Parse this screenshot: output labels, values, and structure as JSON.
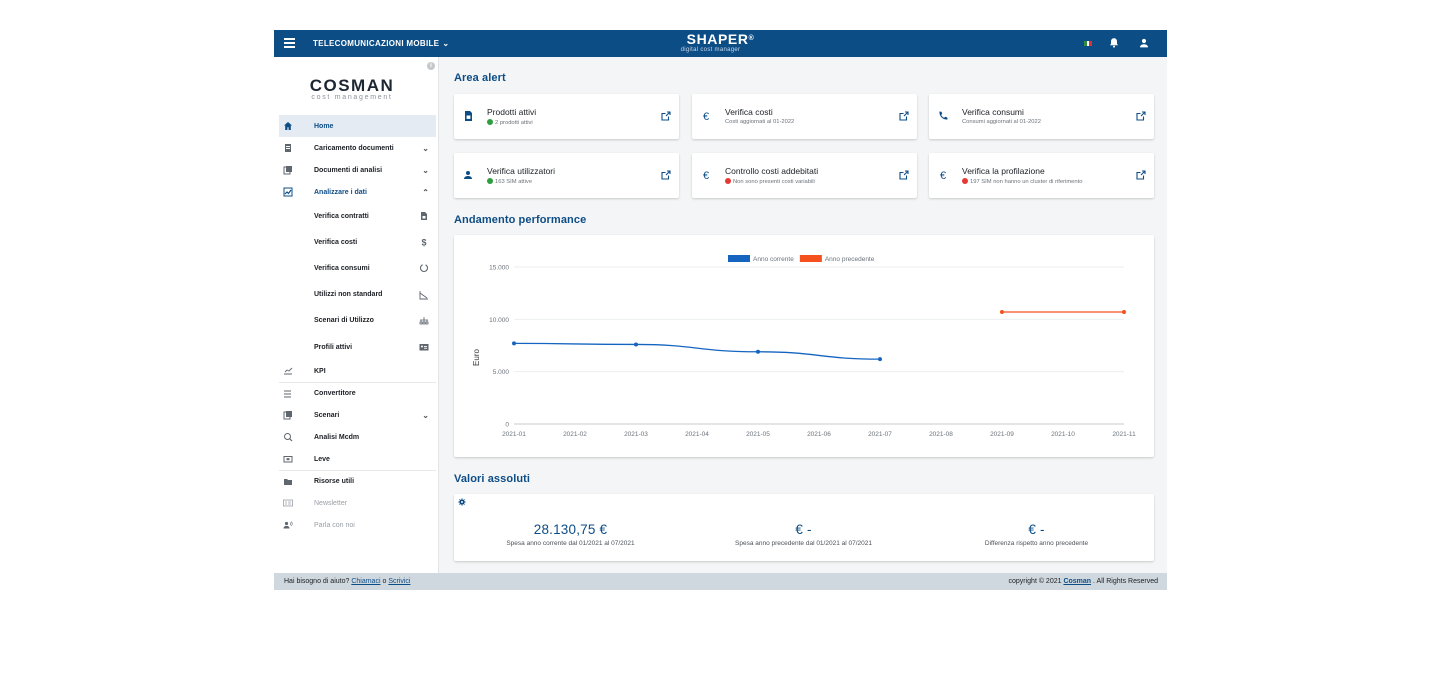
{
  "topbar": {
    "org_label": "TELECOMUNICAZIONI MOBILE",
    "brand_name": "SHAPER",
    "brand_reg": "®",
    "brand_sub": "digital cost manager",
    "icons": [
      "menu-icon",
      "chevron-down-icon",
      "flag-it-icon",
      "bell-icon",
      "user-icon"
    ]
  },
  "sidebar": {
    "logo_main": "COSMAN",
    "logo_sub": "cost management",
    "items": [
      {
        "label": "Home",
        "icon": "home-icon"
      },
      {
        "label": "Caricamento documenti",
        "icon": "upload-doc-icon",
        "chevron": "⌄"
      },
      {
        "label": "Documenti di analisi",
        "icon": "documents-icon",
        "chevron": "⌄"
      },
      {
        "label": "Analizzare i dati",
        "icon": "chart-icon",
        "chevron": "⌃"
      },
      {
        "label": "Verifica contratti",
        "icon": "contract-icon"
      },
      {
        "label": "Verifica costi",
        "icon": "dollar-icon"
      },
      {
        "label": "Verifica consumi",
        "icon": "donut-icon"
      },
      {
        "label": "Utilizzi non standard",
        "icon": "trend-icon"
      },
      {
        "label": "Scenari di Utilizzo",
        "icon": "hierarchy-icon"
      },
      {
        "label": "Profili attivi",
        "icon": "profile-card-icon"
      },
      {
        "label": "KPI",
        "icon": "kpi-icon"
      },
      {
        "label": "Convertitore",
        "icon": "list-icon"
      },
      {
        "label": "Scenari",
        "icon": "scenario-icon",
        "chevron": "⌄"
      },
      {
        "label": "Analisi Mcdm",
        "icon": "analysis-icon"
      },
      {
        "label": "Leve",
        "icon": "lever-icon"
      },
      {
        "label": "Risorse utili",
        "icon": "folder-icon"
      },
      {
        "label": "Newsletter",
        "icon": "newsletter-icon"
      },
      {
        "label": "Parla con noi",
        "icon": "contact-icon"
      }
    ]
  },
  "alerts": {
    "title": "Area alert",
    "cards": [
      {
        "title": "Prodotti attivi",
        "sub": "2 prodotti attivi",
        "dot": "#2e9e3e",
        "icon": "sim-icon"
      },
      {
        "title": "Verifica costi",
        "sub": "Costi aggiornati al 01-2022",
        "dot": null,
        "icon": "euro-icon"
      },
      {
        "title": "Verifica consumi",
        "sub": "Consumi aggiornati al 01-2022",
        "dot": null,
        "icon": "phone-icon"
      },
      {
        "title": "Verifica utilizzatori",
        "sub": "163 SIM attive",
        "dot": "#2e9e3e",
        "icon": "person-icon"
      },
      {
        "title": "Controllo costi addebitati",
        "sub": "Non sono presenti costi variabili",
        "dot": "#e53935",
        "icon": "euro-icon"
      },
      {
        "title": "Verifica la profilazione",
        "sub": "197 SIM non hanno un cluster di riferimento",
        "dot": "#e53935",
        "icon": "euro-icon"
      }
    ]
  },
  "performance": {
    "title": "Andamento performance"
  },
  "chart_data": {
    "type": "line",
    "ylabel": "Euro",
    "ylim": [
      0,
      15000
    ],
    "yticks": [
      "0",
      "5.000",
      "10.000",
      "15.000"
    ],
    "ytick_values": [
      0,
      5000,
      10000,
      15000
    ],
    "x": [
      "2021-01",
      "2021-02",
      "2021-03",
      "2021-04",
      "2021-05",
      "2021-06",
      "2021-07",
      "2021-08",
      "2021-09",
      "2021-10",
      "2021-11"
    ],
    "legend_position": "top-center",
    "series": [
      {
        "name": "Anno corrente",
        "color": "#1565c0",
        "points": [
          [
            "2021-01",
            7700
          ],
          [
            "2021-03",
            7600
          ],
          [
            "2021-05",
            6900
          ],
          [
            "2021-07",
            6200
          ]
        ]
      },
      {
        "name": "Anno precedente",
        "color": "#f4511e",
        "points": [
          [
            "2021-09",
            10700
          ],
          [
            "2021-11",
            10700
          ]
        ]
      }
    ]
  },
  "absolute": {
    "title": "Valori assoluti",
    "kpis": [
      {
        "value": "28.130,75 €",
        "label": "Spesa anno corrente dal 01/2021 al 07/2021"
      },
      {
        "value": "€ -",
        "label": "Spesa anno precedente dal 01/2021 al 07/2021"
      },
      {
        "value": "€ -",
        "label": "Differenza rispetto anno precedente"
      }
    ]
  },
  "footer": {
    "help_prefix": "Hai bisogno di aiuto? ",
    "call_link": "Chiamaci",
    "or": " o ",
    "write_link": "Scrivici",
    "copyright_prefix": "copyright © 2021 ",
    "company_link": "Cosman",
    "copyright_suffix": " . All Rights Reserved"
  }
}
